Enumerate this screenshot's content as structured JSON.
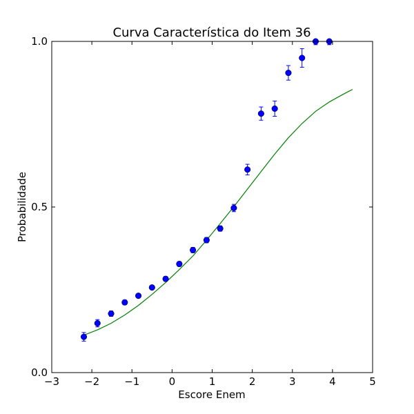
{
  "chart_data": {
    "type": "scatter",
    "title": "Curva Característica do Item 36",
    "xlabel": "Escore Enem",
    "ylabel": "Probabilidade",
    "xlim": [
      -3,
      5
    ],
    "ylim": [
      0.0,
      1.0
    ],
    "x_ticks": [
      -3,
      -2,
      -1,
      0,
      1,
      2,
      3,
      4,
      5
    ],
    "x_tick_labels": [
      "−3",
      "−2",
      "−1",
      "0",
      "1",
      "2",
      "3",
      "4",
      "5"
    ],
    "y_ticks": [
      0.0,
      0.5,
      1.0
    ],
    "y_tick_labels": [
      "0.0",
      "0.5",
      "1.0"
    ],
    "grid": false,
    "legend": "none",
    "points": {
      "color": "#0000ff",
      "x": [
        -2.2,
        -1.86,
        -1.52,
        -1.18,
        -0.84,
        -0.5,
        -0.16,
        0.18,
        0.52,
        0.86,
        1.2,
        1.54,
        1.88,
        2.22,
        2.56,
        2.9,
        3.24,
        3.58,
        3.92
      ],
      "y": [
        0.108,
        0.149,
        0.178,
        0.212,
        0.232,
        0.257,
        0.283,
        0.328,
        0.37,
        0.4,
        0.435,
        0.497,
        0.613,
        0.782,
        0.797,
        0.905,
        0.95,
        1.0,
        1.0
      ],
      "err": [
        0.013,
        0.011,
        0.008,
        0.007,
        0.006,
        0.006,
        0.007,
        0.007,
        0.008,
        0.008,
        0.008,
        0.011,
        0.016,
        0.02,
        0.023,
        0.022,
        0.028,
        0.01,
        0.01
      ]
    },
    "curve": {
      "color": "#008000",
      "x": [
        -2.2,
        -1.86,
        -1.52,
        -1.18,
        -0.84,
        -0.5,
        -0.16,
        0.18,
        0.52,
        0.86,
        1.2,
        1.54,
        1.88,
        2.22,
        2.56,
        2.9,
        3.24,
        3.58,
        3.92,
        4.26,
        4.5
      ],
      "y": [
        0.113,
        0.129,
        0.149,
        0.174,
        0.203,
        0.236,
        0.272,
        0.311,
        0.352,
        0.4,
        0.45,
        0.501,
        0.554,
        0.607,
        0.66,
        0.709,
        0.752,
        0.789,
        0.817,
        0.84,
        0.855
      ]
    }
  }
}
